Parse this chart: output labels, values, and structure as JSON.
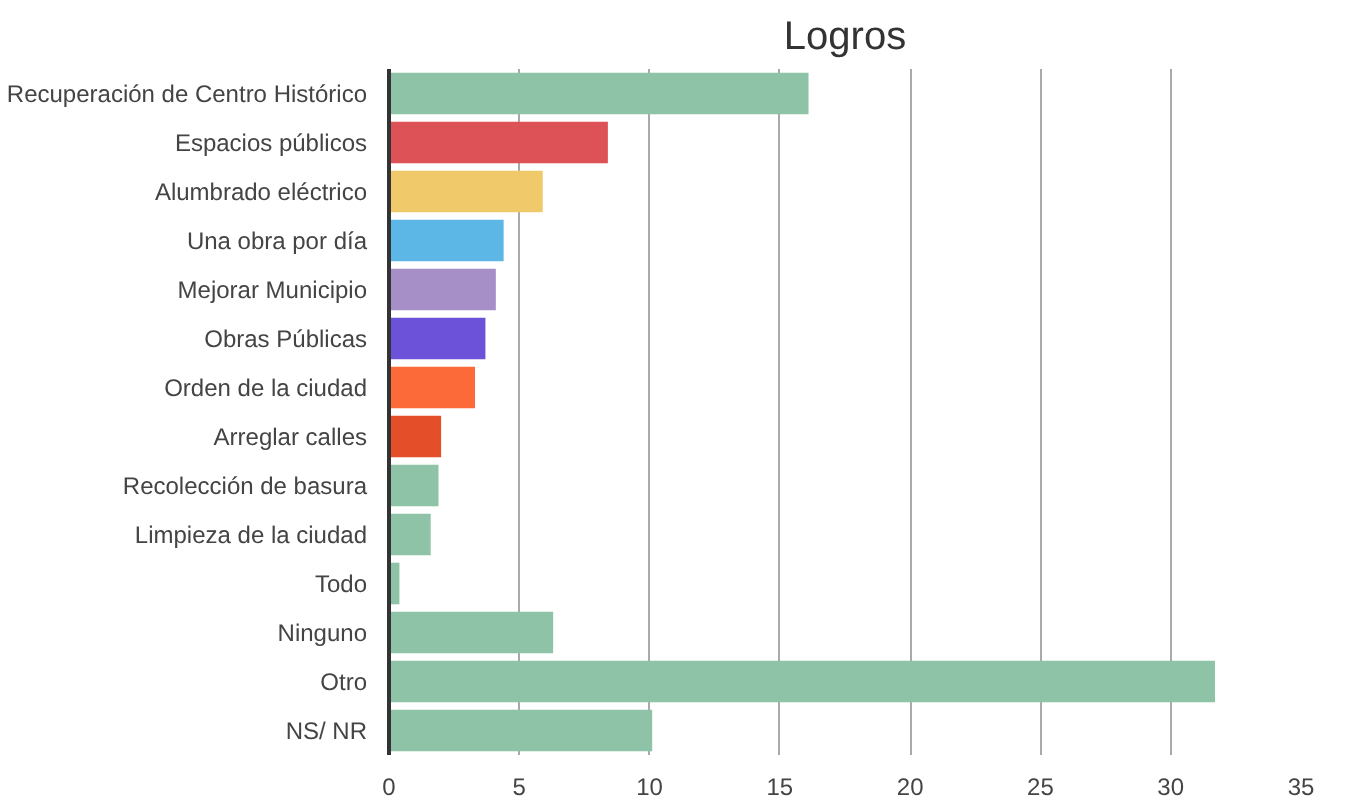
{
  "chart_data": {
    "type": "bar",
    "orientation": "horizontal",
    "title": "Logros",
    "categories": [
      "Recuperación de Centro Histórico",
      "Espacios públicos",
      "Alumbrado eléctrico",
      "Una obra por día",
      "Mejorar Municipio",
      "Obras Públicas",
      "Orden de la ciudad",
      "Arreglar calles",
      "Recolección de basura",
      "Limpieza de la ciudad",
      "Todo",
      "Ninguno",
      "Otro",
      "NS/ NR"
    ],
    "values": [
      16.1,
      8.4,
      5.9,
      4.4,
      4.1,
      3.7,
      3.3,
      2.0,
      1.9,
      1.6,
      0.4,
      6.3,
      31.7,
      10.1
    ],
    "colors": [
      "#8fc3a8",
      "#dd5256",
      "#efc96a",
      "#5cb6e6",
      "#a68fc7",
      "#6c52d9",
      "#fc6a3a",
      "#e44f2a",
      "#8fc3a8",
      "#8fc3a8",
      "#8fc3a8",
      "#8fc3a8",
      "#8fc3a8",
      "#8fc3a8"
    ],
    "xlim": [
      0,
      35
    ],
    "xticks": [
      0,
      5,
      10,
      15,
      20,
      25,
      30,
      35
    ],
    "grid": "x"
  }
}
